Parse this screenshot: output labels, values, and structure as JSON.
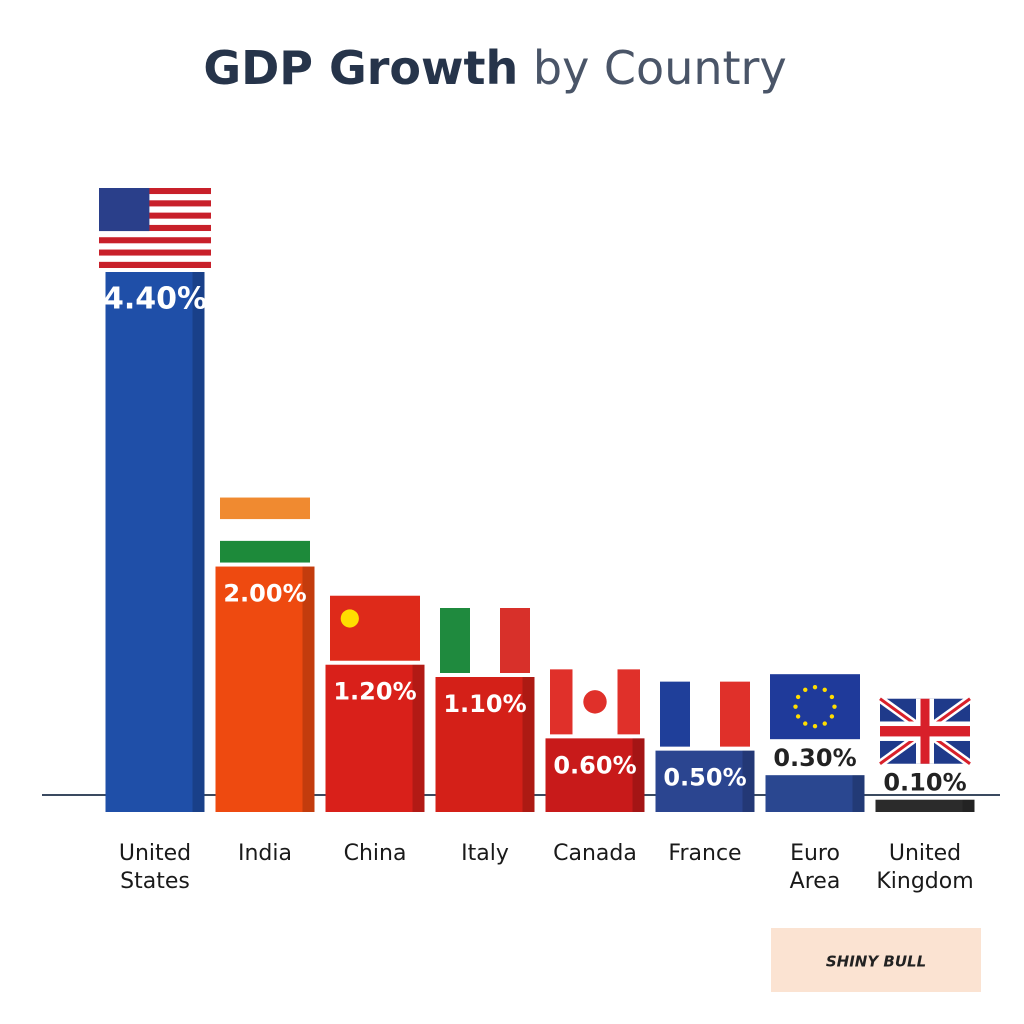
{
  "chart_data": {
    "type": "bar",
    "title": {
      "bold": "GDP Growth",
      "regular": "by Country"
    },
    "categories": [
      "United States",
      "India",
      "China",
      "Italy",
      "Canada",
      "France",
      "Euro Area",
      "United Kingdom"
    ],
    "values": [
      4.4,
      2.0,
      1.2,
      1.1,
      0.6,
      0.5,
      0.3,
      0.1
    ],
    "value_labels": [
      "4.40%",
      "2.00%",
      "1.20%",
      "1.10%",
      "0.60%",
      "0.50%",
      "0.30%",
      "0.10%"
    ],
    "colors": [
      "#1f4fa8",
      "#ee4a10",
      "#d9201a",
      "#d42018",
      "#c81a1a",
      "#2b4590",
      "#2a4790",
      "#2b2b2b"
    ],
    "watermark": "SHINY BULL"
  }
}
